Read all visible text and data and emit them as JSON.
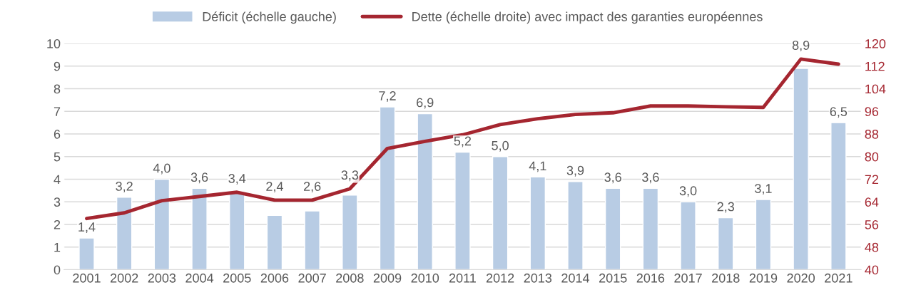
{
  "chart_data": {
    "type": "bar",
    "categories": [
      "2001",
      "2002",
      "2003",
      "2004",
      "2005",
      "2006",
      "2007",
      "2008",
      "2009",
      "2010",
      "2011",
      "2012",
      "2013",
      "2014",
      "2015",
      "2016",
      "2017",
      "2018",
      "2019",
      "2020",
      "2021"
    ],
    "series": [
      {
        "name": "Déficit (échelle gauche)",
        "type": "bar",
        "color": "#b8cce4",
        "values": [
          1.4,
          3.2,
          4.0,
          3.6,
          3.4,
          2.4,
          2.6,
          3.3,
          7.2,
          6.9,
          5.2,
          5.0,
          4.1,
          3.9,
          3.6,
          3.6,
          3.0,
          2.3,
          3.1,
          8.9,
          6.5
        ],
        "value_labels": [
          "1,4",
          "3,2",
          "4,0",
          "3,6",
          "3,4",
          "2,4",
          "2,6",
          "3,3",
          "7,2",
          "6,9",
          "5,2",
          "5,0",
          "4,1",
          "3,9",
          "3,6",
          "3,6",
          "3,0",
          "2,3",
          "3,1",
          "8,9",
          "6,5"
        ]
      },
      {
        "name": "Dette (échelle droite) avec impact des garanties européennes",
        "type": "line",
        "axis": "y2",
        "color": "#a52630",
        "values": [
          58.1,
          60.1,
          64.4,
          65.9,
          67.4,
          64.6,
          64.6,
          68.6,
          82.9,
          85.4,
          87.7,
          91.3,
          93.4,
          94.9,
          95.5,
          97.9,
          97.9,
          97.6,
          97.4,
          114.5,
          112.7
        ]
      }
    ],
    "ylim": [
      0,
      10
    ],
    "yticks": [
      0,
      1,
      2,
      3,
      4,
      5,
      6,
      7,
      8,
      9,
      10
    ],
    "y2lim": [
      40,
      120
    ],
    "y2ticks": [
      40,
      48,
      56,
      64,
      72,
      80,
      88,
      96,
      104,
      112,
      120
    ],
    "grid": "y",
    "legend": "top",
    "marker": "none",
    "line_style": "solid"
  }
}
